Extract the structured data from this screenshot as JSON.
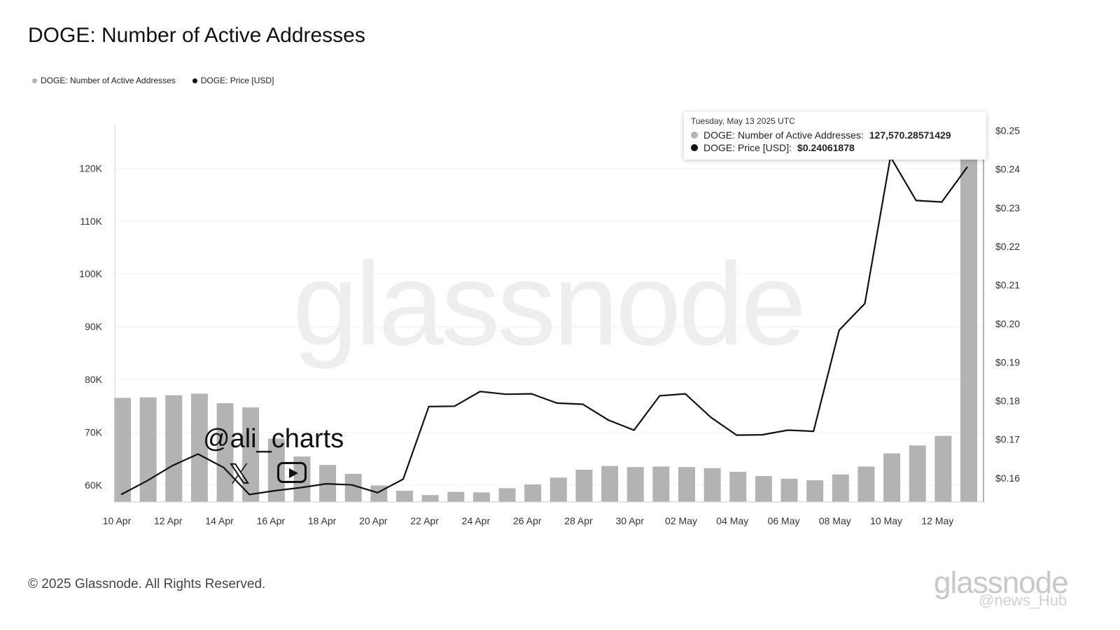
{
  "title": "DOGE: Number of Active Addresses",
  "legend": [
    {
      "label": "DOGE: Number of Active Addresses",
      "color": "#b3b3b3"
    },
    {
      "label": "DOGE: Price [USD]",
      "color": "#111111"
    }
  ],
  "tooltip": {
    "date": "Tuesday, May 13 2025 UTC",
    "row1_label": "DOGE: Number of Active Addresses:",
    "row1_value": "127,570.28571429",
    "row2_label": "DOGE: Price [USD]:",
    "row2_value": "$0.24061878"
  },
  "watermark": "glassnode",
  "copyright": "© 2025 Glassnode. All Rights Reserved.",
  "brand": "glassnode",
  "source_tag": "@news_Hub",
  "overlay": {
    "handle": "@ali_charts",
    "x_glyph": "𝕏"
  },
  "chart_data": {
    "type": "bar+line",
    "x": [
      "10 Apr",
      "11 Apr",
      "12 Apr",
      "13 Apr",
      "14 Apr",
      "15 Apr",
      "16 Apr",
      "17 Apr",
      "18 Apr",
      "19 Apr",
      "20 Apr",
      "21 Apr",
      "22 Apr",
      "23 Apr",
      "24 Apr",
      "25 Apr",
      "26 Apr",
      "27 Apr",
      "28 Apr",
      "29 Apr",
      "30 Apr",
      "01 May",
      "02 May",
      "03 May",
      "04 May",
      "05 May",
      "06 May",
      "07 May",
      "08 May",
      "09 May",
      "10 May",
      "11 May",
      "12 May",
      "13 May"
    ],
    "x_tick_labels": [
      "10 Apr",
      "12 Apr",
      "14 Apr",
      "16 Apr",
      "18 Apr",
      "20 Apr",
      "22 Apr",
      "24 Apr",
      "26 Apr",
      "28 Apr",
      "30 Apr",
      "02 May",
      "04 May",
      "06 May",
      "08 May",
      "10 May",
      "12 May"
    ],
    "series": [
      {
        "name": "DOGE: Number of Active Addresses",
        "type": "bar",
        "axis": "left",
        "values": [
          76500,
          76600,
          77000,
          77300,
          75500,
          74700,
          68800,
          65400,
          63800,
          62100,
          59900,
          58900,
          58100,
          58700,
          58600,
          59400,
          60100,
          61400,
          62900,
          63600,
          63400,
          63500,
          63400,
          63200,
          62500,
          61700,
          61200,
          60900,
          62000,
          63500,
          66000,
          67500,
          69300,
          127570
        ]
      },
      {
        "name": "DOGE: Price [USD]",
        "type": "line",
        "axis": "right",
        "values": [
          0.1557,
          0.1592,
          0.1632,
          0.1662,
          0.1627,
          0.1557,
          0.1567,
          0.1575,
          0.1585,
          0.1582,
          0.1562,
          0.1597,
          0.1785,
          0.1786,
          0.1824,
          0.1817,
          0.1818,
          0.1794,
          0.1791,
          0.175,
          0.1724,
          0.1813,
          0.1818,
          0.1757,
          0.1711,
          0.1712,
          0.1724,
          0.1721,
          0.1983,
          0.2052,
          0.2432,
          0.2319,
          0.2315,
          0.2406
        ]
      }
    ],
    "left_axis": {
      "ticks": [
        60000,
        70000,
        80000,
        90000,
        100000,
        110000,
        120000
      ],
      "tick_labels": [
        "60K",
        "70K",
        "80K",
        "90K",
        "100K",
        "110K",
        "120K"
      ],
      "range": [
        56800,
        128000
      ]
    },
    "right_axis": {
      "ticks": [
        0.16,
        0.17,
        0.18,
        0.19,
        0.2,
        0.21,
        0.22,
        0.23,
        0.24,
        0.25
      ],
      "tick_labels": [
        "$0.16",
        "$0.17",
        "$0.18",
        "$0.19",
        "$0.20",
        "$0.21",
        "$0.22",
        "$0.23",
        "$0.24",
        "$0.25"
      ],
      "range": [
        0.1538,
        0.2512
      ]
    },
    "grid": true,
    "legend_position": "top-left"
  }
}
